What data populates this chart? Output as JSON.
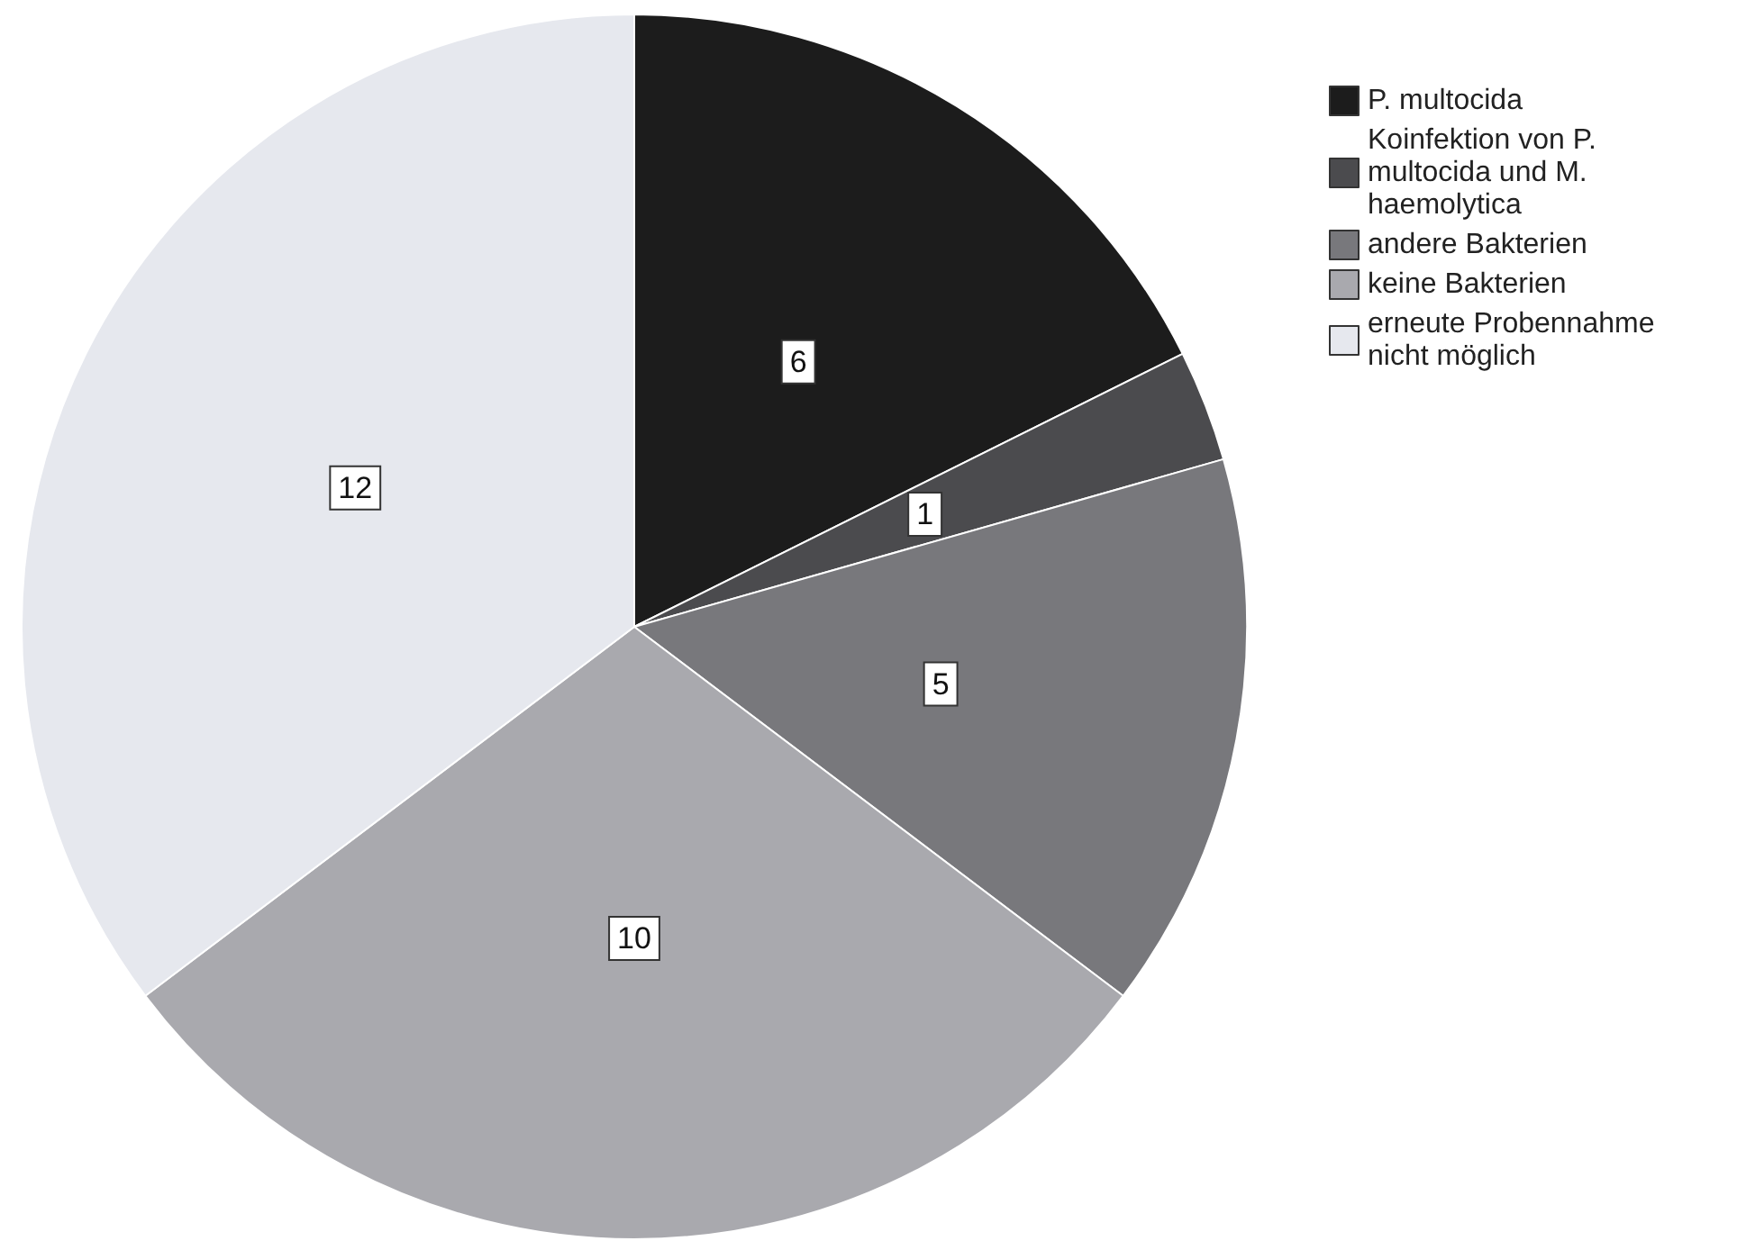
{
  "chart_data": {
    "type": "pie",
    "categories": [
      "P. multocida",
      "Koinfektion von P. multocida und M. haemolytica",
      "andere Bakterien",
      "keine Bakterien",
      "erneute Probennahme nicht möglich"
    ],
    "values": [
      6,
      1,
      5,
      10,
      12
    ],
    "colors": [
      "#1c1c1c",
      "#4b4b4e",
      "#78787c",
      "#a9a9ae",
      "#e6e8ee"
    ],
    "data_labels": true,
    "legend": "top right"
  }
}
